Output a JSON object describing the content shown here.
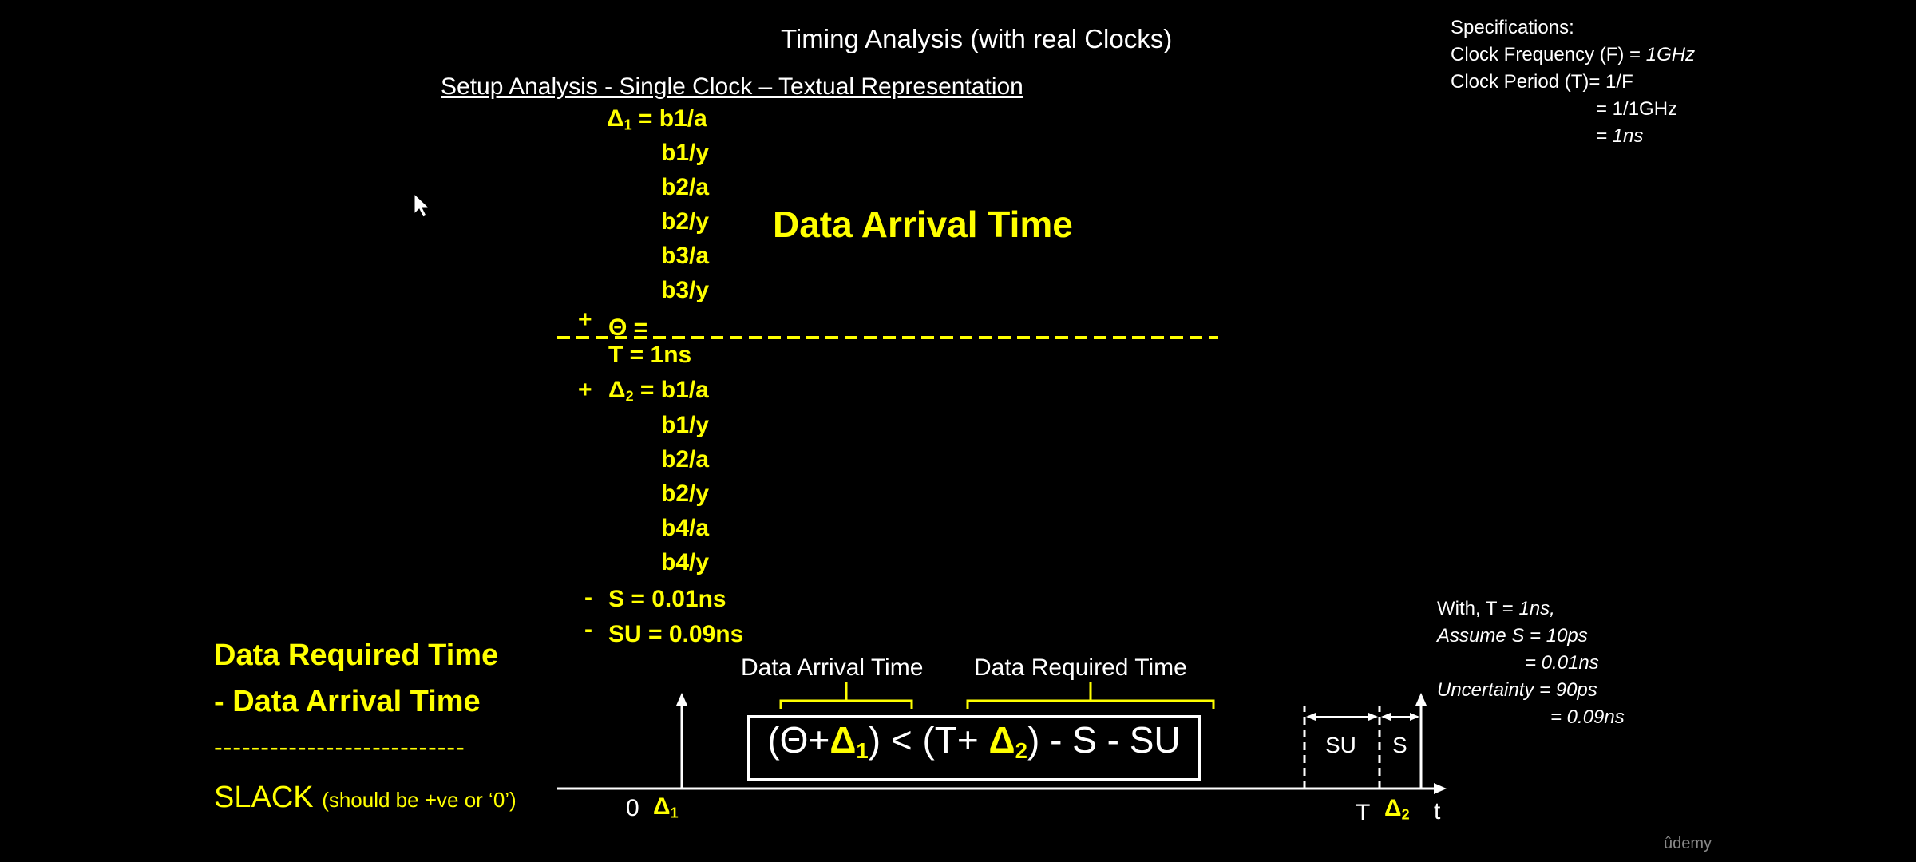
{
  "title": "Timing Analysis (with real Clocks)",
  "subtitle": "Setup Analysis - Single Clock – Textual Representation",
  "specs": {
    "heading": "Specifications:",
    "freq_label": "Clock Frequency (F) = ",
    "freq_value": "1GHz",
    "period_label": "Clock Period (T)= 1/F",
    "period_step1": "= 1/1GHz",
    "period_step2": "= 1ns"
  },
  "arrival": {
    "delta1_label": "Δ",
    "delta1_sub": "1",
    "eq": " = b1/a",
    "cells": [
      "b1/y",
      "b2/a",
      "b2/y",
      "b3/a",
      "b3/y"
    ],
    "plus_theta": "+",
    "theta": "Θ =",
    "big_label": "Data Arrival Time"
  },
  "required": {
    "T_line": "T  = 1ns",
    "plus": "+",
    "delta2_label": "Δ",
    "delta2_sub": "2",
    "eq": " = b1/a",
    "cells": [
      "b1/y",
      "b2/a",
      "b2/y",
      "b4/a",
      "b4/y"
    ],
    "s_minus": "-",
    "s_line": "S   = 0.01ns",
    "su_minus": "-",
    "su_line": "SU = 0.09ns"
  },
  "slack_block": {
    "drt": "Data Required Time",
    "dat": "-   Data Arrival Time",
    "dashes": "---------------------------",
    "slack": "SLACK",
    "slack_note": "(should be +ve or ‘0’)"
  },
  "assumptions": {
    "line1_pre": "With, T = ",
    "line1_val": "1ns,",
    "line2": "Assume S = 10ps",
    "line3": "= 0.01ns",
    "line4": "Uncertainty = 90ps",
    "line5": "= 0.09ns"
  },
  "diagram": {
    "label_arrival": "Data Arrival Time",
    "label_required": "Data Required Time",
    "formula_a": "(Θ+",
    "formula_d1": "Δ",
    "formula_d1_sub": "1",
    "formula_b": ") < (T+ ",
    "formula_d2": "Δ",
    "formula_d2_sub": "2",
    "formula_c": ") - S - SU",
    "axis_zero": "0",
    "axis_d1": "Δ",
    "axis_d1_sub": "1",
    "axis_T": "T",
    "axis_d2": "Δ",
    "axis_d2_sub": "2",
    "axis_t": "t",
    "su": "SU",
    "s": "S"
  },
  "watermark": "ûdemy",
  "colors": {
    "background": "#000000",
    "accent": "#ffff00",
    "text": "#ffffff"
  }
}
